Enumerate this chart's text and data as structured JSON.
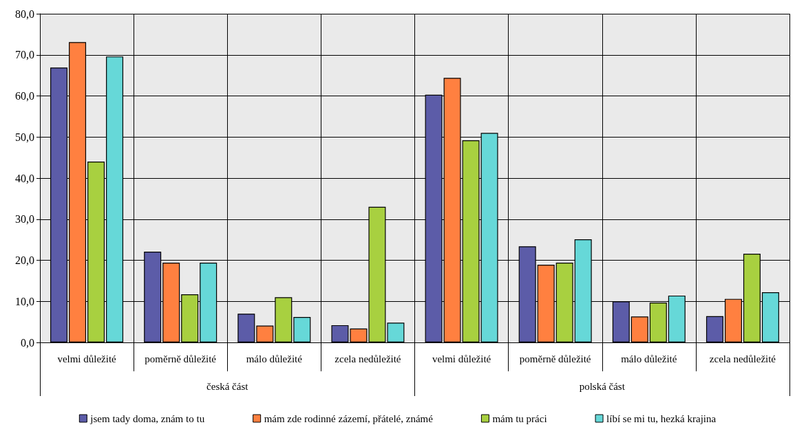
{
  "chart_data": {
    "type": "bar",
    "categories": [
      "velmi důležité",
      "poměrně důležité",
      "málo důležité",
      "zcela nedůležité",
      "velmi důležité",
      "poměrně důležité",
      "málo důležité",
      "zcela nedůležité"
    ],
    "annotations": [
      "česká část",
      "polská část"
    ],
    "series": [
      {
        "name": "jsem tady doma, znám to tu",
        "color": "#5c5ca8",
        "values": [
          66.9,
          22.1,
          7.0,
          4.2,
          60.3,
          23.4,
          10.0,
          6.4
        ]
      },
      {
        "name": "mám zde rodinné zázemí, přátelé, známé",
        "color": "#ff8040",
        "values": [
          73.1,
          19.4,
          4.1,
          3.4,
          64.4,
          18.9,
          6.3,
          10.6
        ]
      },
      {
        "name": "mám tu práci",
        "color": "#a8d040",
        "values": [
          44.0,
          11.7,
          11.0,
          33.0,
          49.2,
          19.4,
          9.7,
          21.6
        ]
      },
      {
        "name": "líbí se mi tu, hezká krajina",
        "color": "#66d8d8",
        "values": [
          69.6,
          19.4,
          6.2,
          4.8,
          51.0,
          25.1,
          11.4,
          12.2
        ]
      }
    ],
    "ylim": [
      0,
      80
    ],
    "yticks": [
      {
        "value": 0,
        "label": "0,0"
      },
      {
        "value": 10,
        "label": "10,0"
      },
      {
        "value": 20,
        "label": "20,0"
      },
      {
        "value": 30,
        "label": "30,0"
      },
      {
        "value": 40,
        "label": "40,0"
      },
      {
        "value": 50,
        "label": "50,0"
      },
      {
        "value": 60,
        "label": "60,0"
      },
      {
        "value": 70,
        "label": "70,0"
      },
      {
        "value": 80,
        "label": "80,0"
      }
    ],
    "grid": true,
    "legend": "bottom"
  }
}
